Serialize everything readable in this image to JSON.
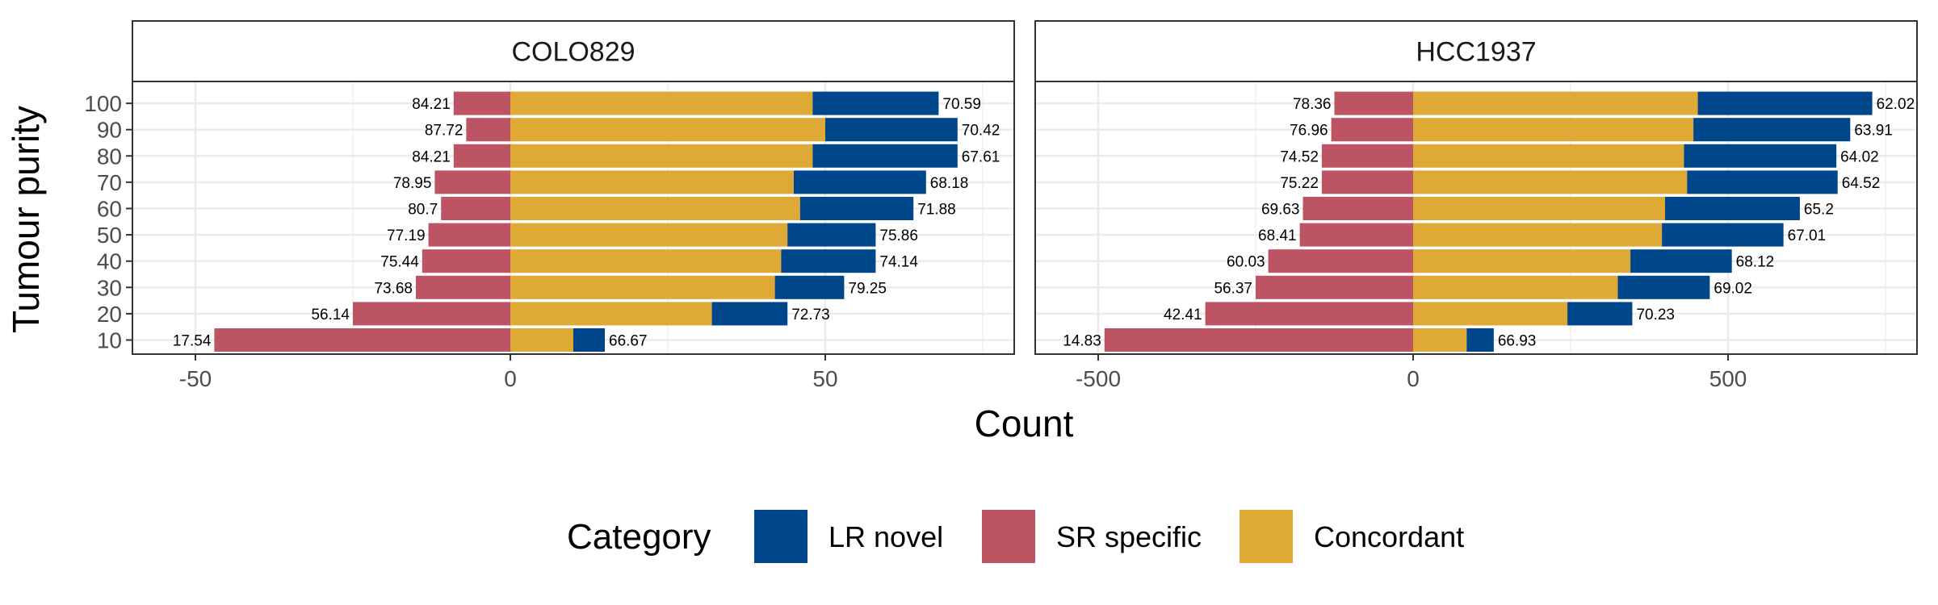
{
  "chart_data": {
    "type": "bar",
    "orientation": "horizontal",
    "stacked": "diverging",
    "xlabel": "Count",
    "ylabel": "Tumour purity",
    "grid": true,
    "legend": {
      "title": "Category",
      "position": "bottom",
      "entries": [
        {
          "name": "LR novel",
          "color": "#00468B"
        },
        {
          "name": "SR specific",
          "color": "#BD5463"
        },
        {
          "name": "Concordant",
          "color": "#DFA935"
        }
      ]
    },
    "categories": [
      "10",
      "20",
      "30",
      "40",
      "50",
      "60",
      "70",
      "80",
      "90",
      "100"
    ],
    "panels": [
      {
        "title": "COLO829",
        "xlim": [
          -60,
          80
        ],
        "xticks": [
          -50,
          0,
          50
        ],
        "xtick_labels": [
          "-50",
          "0",
          "50"
        ],
        "series": [
          {
            "name": "SR specific",
            "values": [
              -47,
              -25,
              -15,
              -14,
              -13,
              -11,
              -12,
              -9,
              -7,
              -9
            ]
          },
          {
            "name": "Concordant",
            "values": [
              10,
              32,
              42,
              43,
              44,
              46,
              45,
              48,
              50,
              48
            ]
          },
          {
            "name": "LR novel",
            "values": [
              5,
              12,
              11,
              15,
              14,
              18,
              21,
              23,
              21,
              20
            ]
          }
        ],
        "left_labels": [
          "17.54",
          "56.14",
          "73.68",
          "75.44",
          "77.19",
          "80.7",
          "78.95",
          "84.21",
          "87.72",
          "84.21"
        ],
        "right_labels": [
          "66.67",
          "72.73",
          "79.25",
          "74.14",
          "75.86",
          "71.88",
          "68.18",
          "67.61",
          "70.42",
          "70.59"
        ]
      },
      {
        "title": "HCC1937",
        "xlim": [
          -600,
          800
        ],
        "xticks": [
          -500,
          0,
          500
        ],
        "xtick_labels": [
          "-500",
          "0",
          "500"
        ],
        "series": [
          {
            "name": "SR specific",
            "values": [
              -490,
              -330,
              -250,
              -230,
              -180,
              -175,
              -145,
              -145,
              -130,
              -125
            ]
          },
          {
            "name": "Concordant",
            "values": [
              85,
              245,
              325,
              345,
              395,
              400,
              435,
              430,
              445,
              452
            ]
          },
          {
            "name": "LR novel",
            "values": [
              43,
              103,
              146,
              161,
              193,
              214,
              239,
              242,
              249,
              277
            ]
          }
        ],
        "left_labels": [
          "14.83",
          "42.41",
          "56.37",
          "60.03",
          "68.41",
          "69.63",
          "75.22",
          "74.52",
          "76.96",
          "78.36"
        ],
        "right_labels": [
          "66.93",
          "70.23",
          "69.02",
          "68.12",
          "67.01",
          "65.2",
          "64.52",
          "64.02",
          "63.91",
          "62.02"
        ]
      }
    ]
  }
}
